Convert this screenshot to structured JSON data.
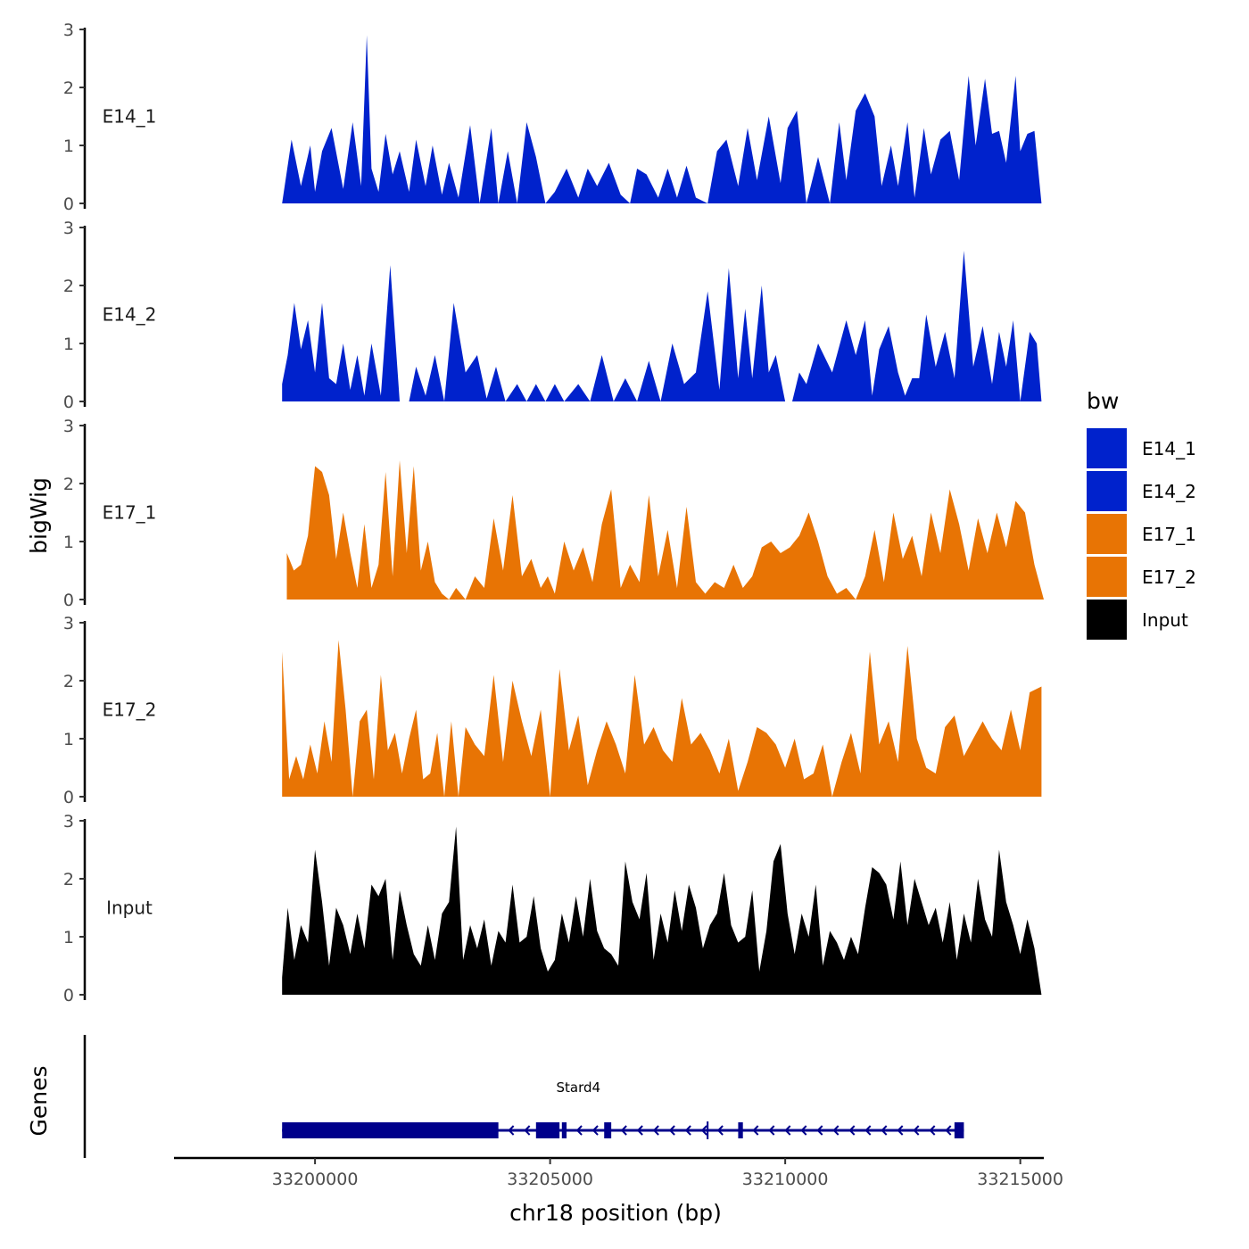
{
  "chart_data": {
    "type": "area",
    "y_title": "bigWig",
    "x_title": "chr18 position (bp)",
    "genes_title": "Genes",
    "xlim": [
      33197000,
      33215500
    ],
    "x_ticks": [
      33200000,
      33205000,
      33210000,
      33215000
    ],
    "x_tick_labels": [
      "33200000",
      "33205000",
      "33210000",
      "33215000"
    ],
    "ylim": [
      0,
      3
    ],
    "y_ticks": [
      0,
      1,
      2,
      3
    ],
    "y_tick_labels": [
      "0",
      "1",
      "2",
      "3"
    ],
    "legend": {
      "title": "bw",
      "entries": [
        {
          "label": "E14_1",
          "color": "#0022cc"
        },
        {
          "label": "E14_2",
          "color": "#0022cc"
        },
        {
          "label": "E17_1",
          "color": "#e87404"
        },
        {
          "label": "E17_2",
          "color": "#e87404"
        },
        {
          "label": "Input",
          "color": "#000000"
        }
      ]
    },
    "series": [
      {
        "name": "E14_1",
        "color": "#0022cc",
        "x": [
          33199300,
          33199500,
          33199700,
          33199900,
          33200000,
          33200150,
          33200350,
          33200600,
          33200800,
          33200980,
          33201100,
          33201200,
          33201350,
          33201500,
          33201650,
          33201800,
          33202000,
          33202150,
          33202350,
          33202500,
          33202700,
          33202850,
          33203050,
          33203300,
          33203500,
          33203750,
          33203900,
          33204100,
          33204300,
          33204500,
          33204700,
          33204900,
          33205100,
          33205350,
          33205600,
          33205800,
          33206000,
          33206250,
          33206500,
          33206700,
          33206850,
          33207050,
          33207300,
          33207500,
          33207700,
          33207900,
          33208100,
          33208350,
          33208550,
          33208750,
          33209000,
          33209200,
          33209400,
          33209650,
          33209900,
          33210050,
          33210250,
          33210450,
          33210700,
          33210950,
          33211150,
          33211300,
          33211500,
          33211700,
          33211900,
          33212050,
          33212250,
          33212400,
          33212600,
          33212750,
          33212950,
          33213100,
          33213300,
          33213500,
          33213700,
          33213900,
          33214050,
          33214250,
          33214400,
          33214550,
          33214700,
          33214900,
          33215000,
          33215150,
          33215300,
          33215450
        ],
        "y": [
          0.0,
          1.1,
          0.3,
          1.0,
          0.2,
          0.9,
          1.3,
          0.25,
          1.4,
          0.3,
          2.9,
          0.6,
          0.2,
          1.2,
          0.5,
          0.9,
          0.2,
          1.1,
          0.3,
          1.0,
          0.15,
          0.7,
          0.1,
          1.35,
          0.0,
          1.3,
          0.0,
          0.9,
          0.0,
          1.4,
          0.8,
          0.0,
          0.2,
          0.6,
          0.1,
          0.6,
          0.3,
          0.7,
          0.15,
          0.0,
          0.6,
          0.5,
          0.1,
          0.6,
          0.1,
          0.65,
          0.1,
          0.0,
          0.9,
          1.1,
          0.3,
          1.3,
          0.4,
          1.5,
          0.35,
          1.3,
          1.6,
          0.0,
          0.8,
          0.0,
          1.4,
          0.4,
          1.6,
          1.9,
          1.5,
          0.3,
          1.0,
          0.3,
          1.4,
          0.1,
          1.3,
          0.5,
          1.1,
          1.25,
          0.4,
          2.2,
          1.0,
          2.15,
          1.2,
          1.25,
          0.7,
          2.2,
          0.9,
          1.2,
          1.25,
          0.0
        ]
      },
      {
        "name": "E14_2",
        "color": "#0022cc",
        "x": [
          33199300,
          33199420,
          33199560,
          33199700,
          33199850,
          33200000,
          33200150,
          33200300,
          33200450,
          33200600,
          33200750,
          33200900,
          33201050,
          33201200,
          33201400,
          33201600,
          33201800,
          33202000,
          33202150,
          33202350,
          33202550,
          33202750,
          33202950,
          33203200,
          33203450,
          33203650,
          33203850,
          33204050,
          33204300,
          33204500,
          33204700,
          33204900,
          33205100,
          33205300,
          33205600,
          33205850,
          33206100,
          33206350,
          33206600,
          33206850,
          33207100,
          33207350,
          33207600,
          33207850,
          33208100,
          33208350,
          33208600,
          33208800,
          33209000,
          33209150,
          33209300,
          33209500,
          33209650,
          33209800,
          33210000,
          33210150,
          33210300,
          33210450,
          33210700,
          33211000,
          33211300,
          33211500,
          33211700,
          33211850,
          33212000,
          33212200,
          33212400,
          33212550,
          33212700,
          33212850,
          33213000,
          33213200,
          33213400,
          33213600,
          33213800,
          33214000,
          33214200,
          33214400,
          33214550,
          33214700,
          33214850,
          33215000,
          33215200,
          33215350,
          33215450
        ],
        "y": [
          0.3,
          0.8,
          1.7,
          0.9,
          1.4,
          0.5,
          1.7,
          0.4,
          0.3,
          1.0,
          0.2,
          0.8,
          0.1,
          1.0,
          0.1,
          2.35,
          0.0,
          0.0,
          0.6,
          0.1,
          0.8,
          0.0,
          1.7,
          0.5,
          0.8,
          0.05,
          0.6,
          0.0,
          0.3,
          0.0,
          0.3,
          0.0,
          0.3,
          0.0,
          0.3,
          0.0,
          0.8,
          0.0,
          0.4,
          0.0,
          0.7,
          0.0,
          1.0,
          0.3,
          0.5,
          1.9,
          0.2,
          2.3,
          0.4,
          1.6,
          0.4,
          2.0,
          0.5,
          0.8,
          0.0,
          0.0,
          0.5,
          0.3,
          1.0,
          0.5,
          1.4,
          0.8,
          1.4,
          0.1,
          0.9,
          1.3,
          0.5,
          0.1,
          0.4,
          0.4,
          1.5,
          0.6,
          1.2,
          0.4,
          2.6,
          0.6,
          1.3,
          0.3,
          1.2,
          0.6,
          1.4,
          0.0,
          1.2,
          1.0,
          0.0
        ]
      },
      {
        "name": "E17_1",
        "color": "#e87404",
        "x": [
          33199400,
          33199550,
          33199700,
          33199850,
          33200000,
          33200150,
          33200300,
          33200450,
          33200600,
          33200750,
          33200900,
          33201050,
          33201200,
          33201350,
          33201500,
          33201650,
          33201800,
          33201950,
          33202100,
          33202250,
          33202400,
          33202550,
          33202700,
          33202850,
          33203000,
          33203200,
          33203400,
          33203600,
          33203800,
          33204000,
          33204200,
          33204400,
          33204600,
          33204800,
          33204950,
          33205100,
          33205300,
          33205500,
          33205700,
          33205900,
          33206100,
          33206300,
          33206500,
          33206700,
          33206900,
          33207100,
          33207300,
          33207500,
          33207700,
          33207900,
          33208100,
          33208300,
          33208500,
          33208700,
          33208900,
          33209100,
          33209300,
          33209500,
          33209700,
          33209900,
          33210100,
          33210300,
          33210500,
          33210700,
          33210900,
          33211100,
          33211300,
          33211500,
          33211700,
          33211900,
          33212100,
          33212300,
          33212500,
          33212700,
          33212900,
          33213100,
          33213300,
          33213500,
          33213700,
          33213900,
          33214100,
          33214300,
          33214500,
          33214700,
          33214900,
          33215100,
          33215300,
          33215500
        ],
        "y": [
          0.8,
          0.5,
          0.6,
          1.1,
          2.3,
          2.2,
          1.8,
          0.7,
          1.5,
          0.8,
          0.2,
          1.3,
          0.2,
          0.6,
          2.2,
          0.4,
          2.4,
          0.8,
          2.3,
          0.5,
          1.0,
          0.3,
          0.1,
          0.0,
          0.2,
          0.0,
          0.4,
          0.2,
          1.4,
          0.5,
          1.8,
          0.4,
          0.7,
          0.2,
          0.4,
          0.1,
          1.0,
          0.5,
          0.9,
          0.3,
          1.3,
          1.9,
          0.2,
          0.6,
          0.3,
          1.8,
          0.4,
          1.2,
          0.2,
          1.6,
          0.3,
          0.1,
          0.3,
          0.2,
          0.6,
          0.2,
          0.4,
          0.9,
          1.0,
          0.8,
          0.9,
          1.1,
          1.5,
          1.0,
          0.4,
          0.1,
          0.2,
          0.0,
          0.4,
          1.2,
          0.3,
          1.5,
          0.7,
          1.1,
          0.4,
          1.5,
          0.8,
          1.9,
          1.3,
          0.5,
          1.4,
          0.8,
          1.5,
          0.9,
          1.7,
          1.5,
          0.6,
          0.0
        ]
      },
      {
        "name": "E17_2",
        "color": "#e87404",
        "x": [
          33199300,
          33199450,
          33199600,
          33199750,
          33199900,
          33200050,
          33200200,
          33200350,
          33200500,
          33200650,
          33200800,
          33200950,
          33201100,
          33201250,
          33201400,
          33201550,
          33201700,
          33201850,
          33202000,
          33202150,
          33202300,
          33202450,
          33202600,
          33202750,
          33202900,
          33203050,
          33203200,
          33203400,
          33203600,
          33203800,
          33204000,
          33204200,
          33204400,
          33204600,
          33204800,
          33205000,
          33205200,
          33205400,
          33205600,
          33205800,
          33206000,
          33206200,
          33206400,
          33206600,
          33206800,
          33207000,
          33207200,
          33207400,
          33207600,
          33207800,
          33208000,
          33208200,
          33208400,
          33208600,
          33208800,
          33209000,
          33209200,
          33209400,
          33209600,
          33209800,
          33210000,
          33210200,
          33210400,
          33210600,
          33210800,
          33211000,
          33211200,
          33211400,
          33211600,
          33211800,
          33212000,
          33212200,
          33212400,
          33212600,
          33212800,
          33213000,
          33213200,
          33213400,
          33213600,
          33213800,
          33214000,
          33214200,
          33214400,
          33214600,
          33214800,
          33215000,
          33215200,
          33215450
        ],
        "y": [
          2.5,
          0.3,
          0.7,
          0.3,
          0.9,
          0.4,
          1.3,
          0.6,
          2.7,
          1.5,
          0.0,
          1.3,
          1.5,
          0.3,
          2.1,
          0.8,
          1.1,
          0.4,
          1.0,
          1.5,
          0.3,
          0.4,
          1.1,
          0.0,
          1.3,
          0.0,
          1.2,
          0.9,
          0.7,
          2.1,
          0.6,
          2.0,
          1.3,
          0.7,
          1.5,
          0.0,
          2.2,
          0.8,
          1.4,
          0.2,
          0.8,
          1.3,
          0.9,
          0.4,
          2.1,
          0.9,
          1.2,
          0.8,
          0.6,
          1.7,
          0.9,
          1.1,
          0.8,
          0.4,
          1.0,
          0.1,
          0.6,
          1.2,
          1.1,
          0.9,
          0.5,
          1.0,
          0.3,
          0.4,
          0.9,
          0.0,
          0.6,
          1.1,
          0.4,
          2.5,
          0.9,
          1.3,
          0.6,
          2.6,
          1.0,
          0.5,
          0.4,
          1.2,
          1.4,
          0.7,
          1.0,
          1.3,
          1.0,
          0.8,
          1.5,
          0.8,
          1.8,
          1.9
        ]
      },
      {
        "name": "Input",
        "color": "#000000",
        "x": [
          33199300,
          33199420,
          33199560,
          33199700,
          33199850,
          33200000,
          33200150,
          33200300,
          33200450,
          33200600,
          33200750,
          33200900,
          33201050,
          33201200,
          33201350,
          33201500,
          33201650,
          33201800,
          33201950,
          33202100,
          33202250,
          33202400,
          33202550,
          33202700,
          33202850,
          33203000,
          33203150,
          33203300,
          33203450,
          33203600,
          33203750,
          33203900,
          33204050,
          33204200,
          33204350,
          33204500,
          33204650,
          33204800,
          33204950,
          33205100,
          33205250,
          33205400,
          33205550,
          33205700,
          33205850,
          33206000,
          33206150,
          33206300,
          33206450,
          33206600,
          33206750,
          33206900,
          33207050,
          33207200,
          33207350,
          33207500,
          33207650,
          33207800,
          33207950,
          33208100,
          33208250,
          33208400,
          33208550,
          33208700,
          33208850,
          33209000,
          33209150,
          33209300,
          33209450,
          33209600,
          33209750,
          33209900,
          33210050,
          33210200,
          33210350,
          33210500,
          33210650,
          33210800,
          33210950,
          33211100,
          33211250,
          33211400,
          33211550,
          33211700,
          33211850,
          33212000,
          33212150,
          33212300,
          33212450,
          33212600,
          33212750,
          33212900,
          33213050,
          33213200,
          33213350,
          33213500,
          33213650,
          33213800,
          33213950,
          33214100,
          33214250,
          33214400,
          33214550,
          33214700,
          33214850,
          33215000,
          33215150,
          33215300,
          33215450
        ],
        "y": [
          0.3,
          1.5,
          0.6,
          1.2,
          0.9,
          2.5,
          1.6,
          0.5,
          1.5,
          1.2,
          0.7,
          1.4,
          0.8,
          1.9,
          1.7,
          2.0,
          0.6,
          1.8,
          1.2,
          0.7,
          0.5,
          1.2,
          0.6,
          1.4,
          1.6,
          2.9,
          0.6,
          1.2,
          0.8,
          1.3,
          0.5,
          1.1,
          0.9,
          1.9,
          0.9,
          1.0,
          1.7,
          0.8,
          0.4,
          0.6,
          1.4,
          0.9,
          1.7,
          1.0,
          2.0,
          1.1,
          0.8,
          0.7,
          0.5,
          2.3,
          1.6,
          1.3,
          2.1,
          0.6,
          1.4,
          0.9,
          1.8,
          1.1,
          1.9,
          1.5,
          0.8,
          1.2,
          1.4,
          2.1,
          1.2,
          0.9,
          1.0,
          1.8,
          0.4,
          1.1,
          2.3,
          2.6,
          1.4,
          0.7,
          1.4,
          1.0,
          1.9,
          0.5,
          1.1,
          0.9,
          0.6,
          1.0,
          0.7,
          1.5,
          2.2,
          2.1,
          1.9,
          1.3,
          2.3,
          1.2,
          2.0,
          1.6,
          1.2,
          1.5,
          0.9,
          1.6,
          0.6,
          1.4,
          0.9,
          2.0,
          1.3,
          1.0,
          2.5,
          1.6,
          1.2,
          0.7,
          1.3,
          0.8,
          0.0
        ]
      }
    ],
    "gene": {
      "name": "Stard4",
      "strand": "-",
      "start": 33199300,
      "end": 33213800,
      "color": "#00008b",
      "exons": [
        [
          33199300,
          33203900
        ],
        [
          33204700,
          33205200
        ],
        [
          33205250,
          33205350
        ],
        [
          33206150,
          33206300
        ],
        [
          33209000,
          33209100
        ],
        [
          33213600,
          33213800
        ]
      ],
      "markers": [
        33208350
      ]
    }
  }
}
